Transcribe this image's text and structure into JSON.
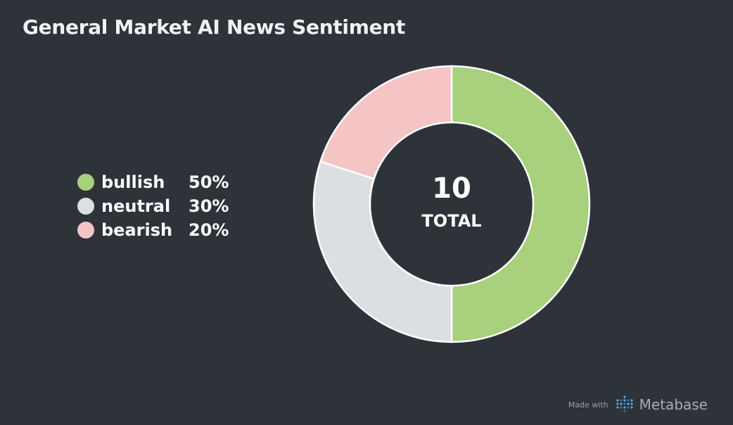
{
  "title": "General Market AI News Sentiment",
  "chart_data": {
    "type": "pie",
    "title": "General Market AI News Sentiment",
    "categories": [
      "bullish",
      "neutral",
      "bearish"
    ],
    "values": [
      5,
      3,
      2
    ],
    "percentages": [
      "50%",
      "30%",
      "20%"
    ],
    "colors": [
      "#a8d07d",
      "#dcdfe1",
      "#f5c4c5"
    ],
    "total": "10",
    "total_label": "TOTAL",
    "legend_position": "left"
  },
  "footer": {
    "made_with": "Made with",
    "brand": "Metabase",
    "logo_icon": "metabase-logo-icon"
  }
}
